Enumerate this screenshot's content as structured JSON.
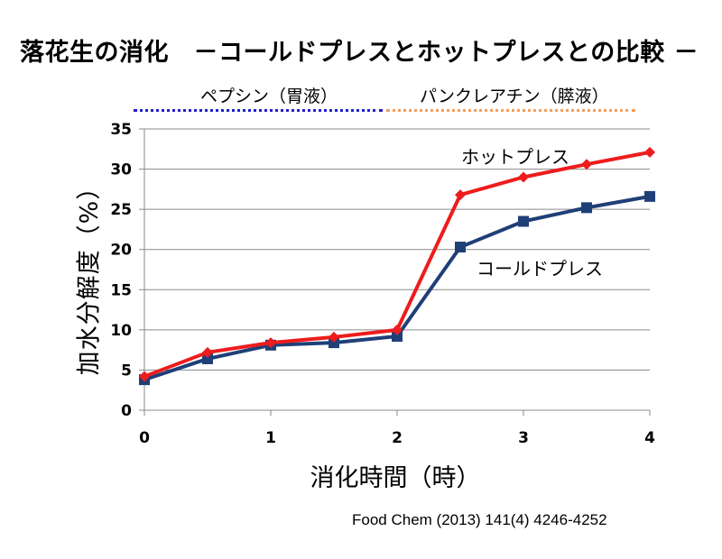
{
  "header": {
    "title": "落花生の消化　－コールドプレスとホットプレスとの比較 －",
    "phase_pepsin": "ペプシン（胃液）",
    "phase_pancreatin": "パンクレアチン（膵液）"
  },
  "footer": {
    "citation": "Food Chem (2013) 141(4) 4246-4252"
  },
  "colors": {
    "hot_press": "#ee1c1c",
    "cold_press": "#1f3f77",
    "pepsin_dots": "#1f1fd0",
    "pancreatin_dots": "#f0a060"
  },
  "chart_data": {
    "type": "line",
    "title": "落花生の消化　－コールドプレスとホットプレスとの比較 －",
    "xlabel": "消化時間（時）",
    "ylabel": "加水分解度（%）",
    "xlim": [
      0,
      4
    ],
    "ylim": [
      0,
      35
    ],
    "x_ticks": [
      0,
      1,
      2,
      3,
      4
    ],
    "y_ticks": [
      0,
      5,
      10,
      15,
      20,
      25,
      30,
      35
    ],
    "grid": true,
    "x": [
      0,
      0.5,
      1,
      1.5,
      2,
      2.5,
      3,
      3.5,
      4
    ],
    "series": [
      {
        "name": "ホットプレス",
        "marker": "diamond",
        "color": "#ee1c1c",
        "values": [
          4.2,
          7.2,
          8.4,
          9.1,
          10.0,
          26.8,
          29.0,
          30.6,
          32.1
        ]
      },
      {
        "name": "コールドプレス",
        "marker": "square",
        "color": "#1f3f77",
        "values": [
          3.8,
          6.4,
          8.1,
          8.4,
          9.2,
          20.3,
          23.5,
          25.2,
          26.6
        ]
      }
    ]
  }
}
